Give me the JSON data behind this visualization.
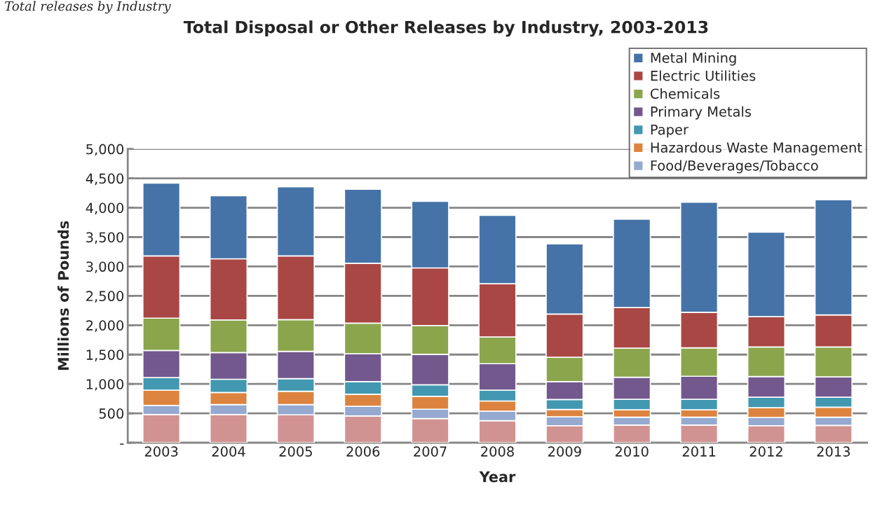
{
  "chart_data": {
    "type": "bar",
    "stacked": true,
    "title": "Total Disposal or Other Releases by Industry, 2003-2013",
    "xlabel": "Year",
    "ylabel": "Millions of Pounds",
    "annotations": [
      "Total releases by Industry"
    ],
    "categories": [
      "2003",
      "2004",
      "2005",
      "2006",
      "2007",
      "2008",
      "2009",
      "2010",
      "2011",
      "2012",
      "2013"
    ],
    "series": [
      {
        "color": "#d19392",
        "values": [
          480,
          480,
          475,
          455,
          410,
          375,
          290,
          300,
          300,
          290,
          295
        ]
      },
      {
        "name": "Food/Beverages/Tobacco",
        "color": "#95a9d1",
        "values": [
          155,
          170,
          175,
          165,
          160,
          160,
          150,
          135,
          135,
          140,
          140
        ]
      },
      {
        "name": "Hazardous Waste Management",
        "color": "#dc843f",
        "values": [
          260,
          205,
          225,
          205,
          220,
          175,
          125,
          125,
          125,
          165,
          170
        ]
      },
      {
        "name": "Paper",
        "color": "#4298b0",
        "values": [
          215,
          225,
          215,
          215,
          195,
          185,
          170,
          180,
          180,
          180,
          170
        ]
      },
      {
        "name": "Primary Metals",
        "color": "#72588d",
        "values": [
          460,
          455,
          465,
          475,
          520,
          450,
          305,
          375,
          390,
          350,
          345
        ]
      },
      {
        "name": "Chemicals",
        "color": "#8ba54d",
        "values": [
          550,
          555,
          540,
          520,
          490,
          455,
          415,
          495,
          485,
          505,
          510
        ]
      },
      {
        "name": "Electric Utilities",
        "color": "#a94745",
        "values": [
          1060,
          1040,
          1085,
          1020,
          980,
          905,
          735,
          690,
          605,
          515,
          545
        ]
      },
      {
        "name": "Metal Mining",
        "color": "#4573a7",
        "values": [
          1240,
          1075,
          1175,
          1260,
          1135,
          1165,
          1195,
          1505,
          1875,
          1440,
          1960
        ]
      }
    ],
    "ylim": [
      0,
      5000
    ],
    "yticks": [
      {
        "value": 0,
        "label": "-"
      },
      {
        "value": 500,
        "label": "500"
      },
      {
        "value": 1000,
        "label": "1,000"
      },
      {
        "value": 1500,
        "label": "1,500"
      },
      {
        "value": 2000,
        "label": "2,000"
      },
      {
        "value": 2500,
        "label": "2,500"
      },
      {
        "value": 3000,
        "label": "3,000"
      },
      {
        "value": 3500,
        "label": "3,500"
      },
      {
        "value": 4000,
        "label": "4,000"
      },
      {
        "value": 4500,
        "label": "4,500"
      },
      {
        "value": 5000,
        "label": "5,000"
      }
    ],
    "grid": "y",
    "legend": "top right"
  }
}
